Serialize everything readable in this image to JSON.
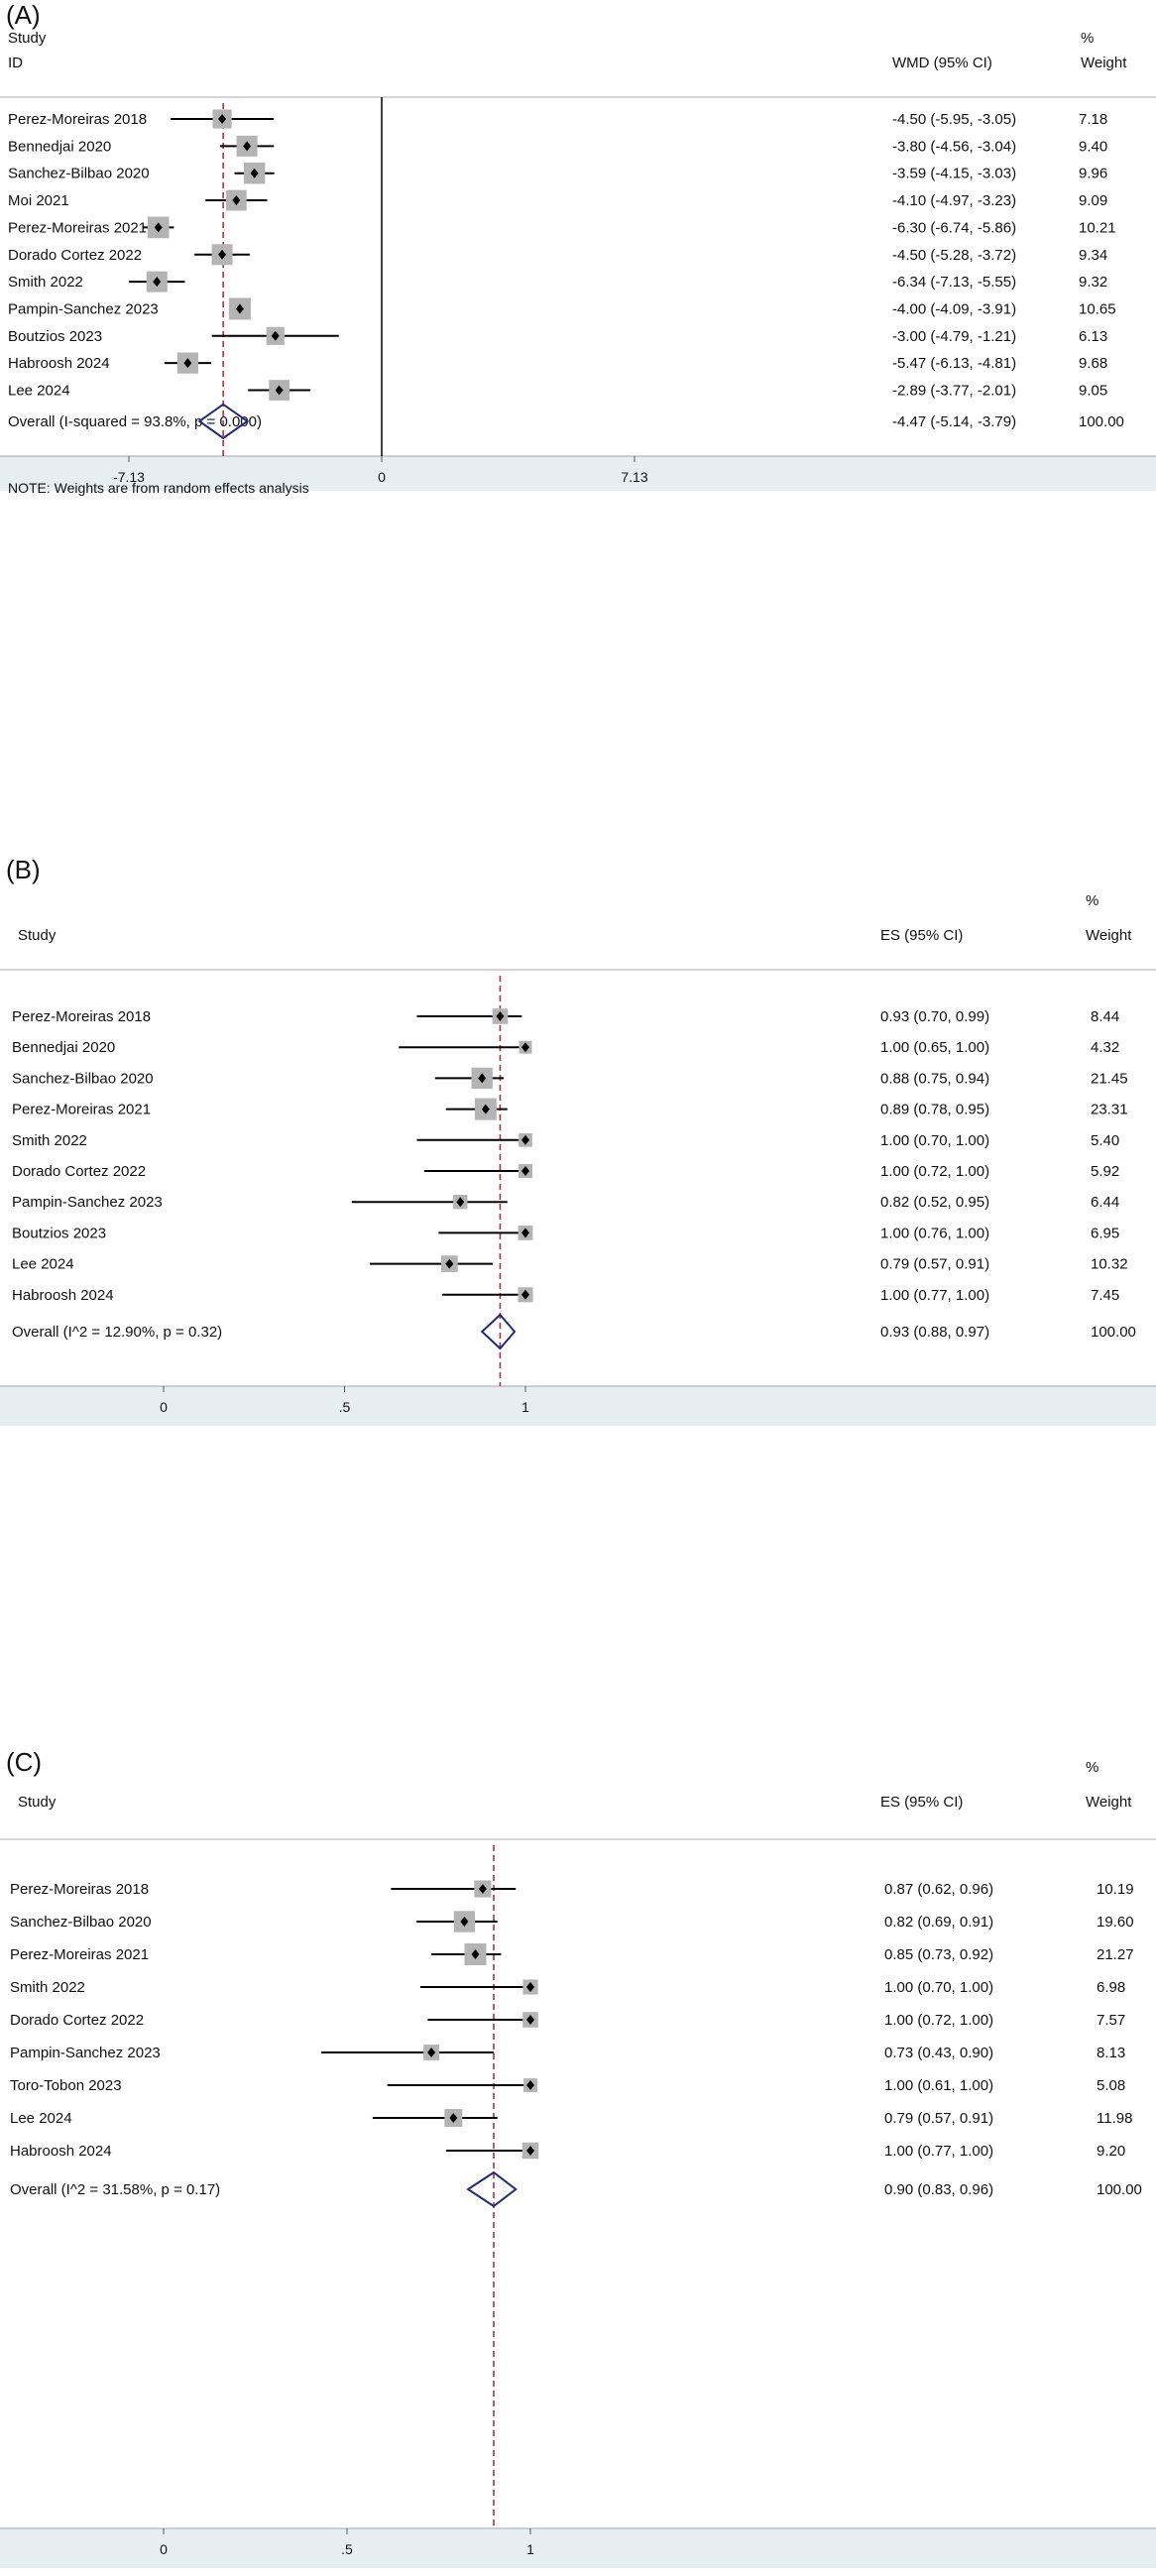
{
  "chart_data": [
    {
      "type": "forest",
      "panel_label": "(A)",
      "header": {
        "study": "Study",
        "id": "ID",
        "effect": "WMD (95% CI)",
        "weight_pct": "%",
        "weight": "Weight"
      },
      "xlim": [
        -7.13,
        7.13
      ],
      "xticks": [
        "-7.13",
        "0",
        "7.13"
      ],
      "null_line": 0,
      "overall_line": -4.47,
      "note": "NOTE: Weights are from random effects analysis",
      "rows": [
        {
          "study": "Perez-Moreiras 2018",
          "est": -4.5,
          "lo": -5.95,
          "hi": -3.05,
          "ci": "-4.50 (-5.95, -3.05)",
          "weight": "7.18",
          "w": 7.18
        },
        {
          "study": "Bennedjai 2020",
          "est": -3.8,
          "lo": -4.56,
          "hi": -3.04,
          "ci": "-3.80 (-4.56, -3.04)",
          "weight": "9.40",
          "w": 9.4
        },
        {
          "study": "Sanchez-Bilbao 2020",
          "est": -3.59,
          "lo": -4.15,
          "hi": -3.03,
          "ci": "-3.59 (-4.15, -3.03)",
          "weight": "9.96",
          "w": 9.96
        },
        {
          "study": "Moi 2021",
          "est": -4.1,
          "lo": -4.97,
          "hi": -3.23,
          "ci": "-4.10 (-4.97, -3.23)",
          "weight": "9.09",
          "w": 9.09
        },
        {
          "study": "Perez-Moreiras 2021",
          "est": -6.3,
          "lo": -6.74,
          "hi": -5.86,
          "ci": "-6.30 (-6.74, -5.86)",
          "weight": "10.21",
          "w": 10.21
        },
        {
          "study": "Dorado Cortez 2022",
          "est": -4.5,
          "lo": -5.28,
          "hi": -3.72,
          "ci": "-4.50 (-5.28, -3.72)",
          "weight": "9.34",
          "w": 9.34
        },
        {
          "study": "Smith 2022",
          "est": -6.34,
          "lo": -7.13,
          "hi": -5.55,
          "ci": "-6.34 (-7.13, -5.55)",
          "weight": "9.32",
          "w": 9.32
        },
        {
          "study": "Pampin-Sanchez 2023",
          "est": -4.0,
          "lo": -4.09,
          "hi": -3.91,
          "ci": "-4.00 (-4.09, -3.91)",
          "weight": "10.65",
          "w": 10.65
        },
        {
          "study": "Boutzios 2023",
          "est": -3.0,
          "lo": -4.79,
          "hi": -1.21,
          "ci": "-3.00 (-4.79, -1.21)",
          "weight": "6.13",
          "w": 6.13
        },
        {
          "study": "Habroosh 2024",
          "est": -5.47,
          "lo": -6.13,
          "hi": -4.81,
          "ci": "-5.47 (-6.13, -4.81)",
          "weight": "9.68",
          "w": 9.68
        },
        {
          "study": "Lee 2024",
          "est": -2.89,
          "lo": -3.77,
          "hi": -2.01,
          "ci": "-2.89 (-3.77, -2.01)",
          "weight": "9.05",
          "w": 9.05
        }
      ],
      "overall": {
        "label": "Overall  (I-squared = 93.8%, p = 0.000)",
        "est": -4.47,
        "lo": -5.14,
        "hi": -3.79,
        "ci": "-4.47 (-5.14, -3.79)",
        "weight": "100.00"
      }
    },
    {
      "type": "forest",
      "panel_label": "(B)",
      "header": {
        "study": "Study",
        "id": "",
        "effect": "ES (95% CI)",
        "weight_pct": "%",
        "weight": "Weight"
      },
      "xlim": [
        0,
        1
      ],
      "xticks": [
        "0",
        ".5",
        "1"
      ],
      "overall_line": 0.93,
      "note": "",
      "rows": [
        {
          "study": "Perez-Moreiras  2018",
          "est": 0.93,
          "lo": 0.7,
          "hi": 0.99,
          "ci": "0.93 (0.70, 0.99)",
          "weight": "8.44",
          "w": 8.44
        },
        {
          "study": "Bennedjai 2020",
          "est": 1.0,
          "lo": 0.65,
          "hi": 1.0,
          "ci": "1.00 (0.65, 1.00)",
          "weight": "4.32",
          "w": 4.32
        },
        {
          "study": "Sanchez-Bilbao 2020",
          "est": 0.88,
          "lo": 0.75,
          "hi": 0.94,
          "ci": "0.88 (0.75, 0.94)",
          "weight": "21.45",
          "w": 21.45
        },
        {
          "study": "Perez-Moreiras  2021",
          "est": 0.89,
          "lo": 0.78,
          "hi": 0.95,
          "ci": "0.89 (0.78, 0.95)",
          "weight": "23.31",
          "w": 23.31
        },
        {
          "study": "Smith 2022",
          "est": 1.0,
          "lo": 0.7,
          "hi": 1.0,
          "ci": "1.00 (0.70, 1.00)",
          "weight": "5.40",
          "w": 5.4
        },
        {
          "study": "Dorado Cortez 2022",
          "est": 1.0,
          "lo": 0.72,
          "hi": 1.0,
          "ci": "1.00 (0.72, 1.00)",
          "weight": "5.92",
          "w": 5.92
        },
        {
          "study": "Pampin-Sanchez 2023",
          "est": 0.82,
          "lo": 0.52,
          "hi": 0.95,
          "ci": "0.82 (0.52, 0.95)",
          "weight": "6.44",
          "w": 6.44
        },
        {
          "study": "Boutzios 2023",
          "est": 1.0,
          "lo": 0.76,
          "hi": 1.0,
          "ci": "1.00 (0.76, 1.00)",
          "weight": "6.95",
          "w": 6.95
        },
        {
          "study": "Lee 2024",
          "est": 0.79,
          "lo": 0.57,
          "hi": 0.91,
          "ci": "0.79 (0.57, 0.91)",
          "weight": "10.32",
          "w": 10.32
        },
        {
          "study": "Habroosh 2024",
          "est": 1.0,
          "lo": 0.77,
          "hi": 1.0,
          "ci": "1.00 (0.77, 1.00)",
          "weight": "7.45",
          "w": 7.45
        }
      ],
      "overall": {
        "label": "Overall  (I^2 = 12.90%, p = 0.32)",
        "est": 0.93,
        "lo": 0.88,
        "hi": 0.97,
        "ci": "0.93 (0.88, 0.97)",
        "weight": "100.00"
      }
    },
    {
      "type": "forest",
      "panel_label": "(C)",
      "header": {
        "study": "Study",
        "id": "",
        "effect": "ES (95% CI)",
        "weight_pct": "%",
        "weight": "Weight"
      },
      "xlim": [
        0,
        1
      ],
      "xticks": [
        "0",
        ".5",
        "1"
      ],
      "overall_line": 0.9,
      "note": "",
      "rows": [
        {
          "study": "Perez-Moreiras 2018",
          "est": 0.87,
          "lo": 0.62,
          "hi": 0.96,
          "ci": "0.87 (0.62, 0.96)",
          "weight": "10.19",
          "w": 10.19
        },
        {
          "study": "Sanchez-Bilbao 2020",
          "est": 0.82,
          "lo": 0.69,
          "hi": 0.91,
          "ci": "0.82 (0.69, 0.91)",
          "weight": "19.60",
          "w": 19.6
        },
        {
          "study": "Perez-Moreiras 2021",
          "est": 0.85,
          "lo": 0.73,
          "hi": 0.92,
          "ci": "0.85 (0.73, 0.92)",
          "weight": "21.27",
          "w": 21.27
        },
        {
          "study": "Smith 2022",
          "est": 1.0,
          "lo": 0.7,
          "hi": 1.0,
          "ci": "1.00 (0.70, 1.00)",
          "weight": "6.98",
          "w": 6.98
        },
        {
          "study": "Dorado Cortez 2022",
          "est": 1.0,
          "lo": 0.72,
          "hi": 1.0,
          "ci": "1.00 (0.72, 1.00)",
          "weight": "7.57",
          "w": 7.57
        },
        {
          "study": "Pampin-Sanchez 2023",
          "est": 0.73,
          "lo": 0.43,
          "hi": 0.9,
          "ci": "0.73 (0.43, 0.90)",
          "weight": "8.13",
          "w": 8.13
        },
        {
          "study": "Toro-Tobon 2023",
          "est": 1.0,
          "lo": 0.61,
          "hi": 1.0,
          "ci": "1.00 (0.61, 1.00)",
          "weight": "5.08",
          "w": 5.08
        },
        {
          "study": "Lee 2024",
          "est": 0.79,
          "lo": 0.57,
          "hi": 0.91,
          "ci": "0.79 (0.57, 0.91)",
          "weight": "11.98",
          "w": 11.98
        },
        {
          "study": "Habroosh 2024",
          "est": 1.0,
          "lo": 0.77,
          "hi": 1.0,
          "ci": "1.00 (0.77, 1.00)",
          "weight": "9.20",
          "w": 9.2
        }
      ],
      "overall": {
        "label": "Overall  (I^2 = 31.58%, p = 0.17)",
        "est": 0.9,
        "lo": 0.83,
        "hi": 0.96,
        "ci": "0.90 (0.83, 0.96)",
        "weight": "100.00"
      }
    }
  ]
}
